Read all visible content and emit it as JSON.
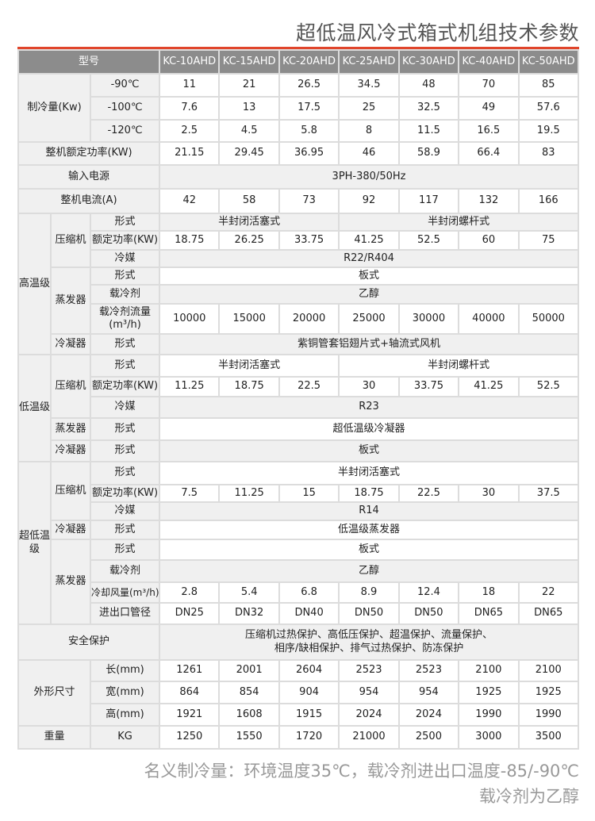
{
  "title": "超低温风冷式箱式机组技术参数",
  "accent_color": "#e0452b",
  "header": {
    "label": "型号",
    "models": [
      "KC-10AHD",
      "KC-15AHD",
      "KC-20AHD",
      "KC-25AHD",
      "KC-30AHD",
      "KC-40AHD",
      "KC-50AHD"
    ]
  },
  "cooling": {
    "label": "制冷量(Kw)",
    "rows": [
      {
        "temp": "-90℃",
        "values": [
          "11",
          "21",
          "26.5",
          "34.5",
          "48",
          "70",
          "85"
        ]
      },
      {
        "temp": "-100℃",
        "values": [
          "7.6",
          "13",
          "17.5",
          "25",
          "32.5",
          "49",
          "57.6"
        ]
      },
      {
        "temp": "-120℃",
        "values": [
          "2.5",
          "4.5",
          "5.8",
          "8",
          "11.5",
          "16.5",
          "19.5"
        ]
      }
    ]
  },
  "rated_power": {
    "label": "整机额定功率(KW)",
    "values": [
      "21.15",
      "29.45",
      "36.95",
      "46",
      "58.9",
      "66.4",
      "83"
    ]
  },
  "power_supply": {
    "label": "输入电源",
    "value": "3PH-380/50Hz"
  },
  "current": {
    "label": "整机电流(A)",
    "values": [
      "42",
      "58",
      "73",
      "92",
      "117",
      "132",
      "166"
    ]
  },
  "high_stage": {
    "label": "高温级",
    "compressor": {
      "label": "压缩机",
      "type_label": "形式",
      "types": [
        "半封闭活塞式",
        "半封闭螺杆式"
      ],
      "power_label": "额定功率(KW)",
      "power_values": [
        "18.75",
        "26.25",
        "33.75",
        "41.25",
        "52.5",
        "60",
        "75"
      ],
      "refrigerant_label": "冷媒",
      "refrigerant": "R22/R404"
    },
    "evaporator": {
      "label": "蒸发器",
      "type_label": "形式",
      "type": "板式",
      "coolant_label": "载冷剂",
      "coolant": "乙醇",
      "flow_label": "载冷剂流量(m³/h)",
      "flow_values": [
        "10000",
        "15000",
        "20000",
        "25000",
        "30000",
        "40000",
        "50000"
      ]
    },
    "condenser": {
      "label": "冷凝器",
      "type_label": "形式",
      "type": "紫铜管套铝翅片式+轴流式风机"
    }
  },
  "low_stage": {
    "label": "低温级",
    "compressor": {
      "label": "压缩机",
      "type_label": "形式",
      "types": [
        "半封闭活塞式",
        "半封闭螺杆式"
      ],
      "power_label": "额定功率(KW)",
      "power_values": [
        "11.25",
        "18.75",
        "22.5",
        "30",
        "33.75",
        "41.25",
        "52.5"
      ],
      "refrigerant_label": "冷媒",
      "refrigerant": "R23"
    },
    "evaporator": {
      "label": "蒸发器",
      "type_label": "形式",
      "type": "超低温级冷凝器"
    },
    "condenser": {
      "label": "冷凝器",
      "type_label": "形式",
      "type": "板式"
    }
  },
  "ultra_stage": {
    "label": "超低温级",
    "compressor": {
      "label": "压缩机",
      "type_label": "形式",
      "type": "半封闭活塞式",
      "power_label": "额定功率(KW)",
      "power_values": [
        "7.5",
        "11.25",
        "15",
        "18.75",
        "22.5",
        "30",
        "37.5"
      ],
      "refrigerant_label": "冷媒",
      "refrigerant": "R14"
    },
    "condenser": {
      "label": "冷凝器",
      "type_label": "形式",
      "type": "低温级蒸发器"
    },
    "evaporator": {
      "label": "蒸发器",
      "type_label": "形式",
      "type": "板式",
      "coolant_label": "载冷剂",
      "coolant": "乙醇",
      "airflow_label": "冷却风量(m³/h)",
      "airflow_values": [
        "2.8",
        "5.4",
        "6.8",
        "8.9",
        "12.4",
        "18",
        "22"
      ],
      "pipe_label": "进出口管径",
      "pipe_values": [
        "DN25",
        "DN32",
        "DN40",
        "DN50",
        "DN50",
        "DN65",
        "DN65"
      ]
    }
  },
  "safety": {
    "label": "安全保护",
    "line1": "压缩机过热保护、高低压保护、超温保护、流量保护、",
    "line2": "相序/缺相保护、排气过热保护、防冻保护"
  },
  "dimensions": {
    "label": "外形尺寸",
    "rows": [
      {
        "label": "长(mm)",
        "values": [
          "1261",
          "2001",
          "2604",
          "2523",
          "2523",
          "2100",
          "2100"
        ]
      },
      {
        "label": "宽(mm)",
        "values": [
          "864",
          "854",
          "904",
          "954",
          "954",
          "1925",
          "1925"
        ]
      },
      {
        "label": "高(mm)",
        "values": [
          "1921",
          "1608",
          "1915",
          "2024",
          "2024",
          "1990",
          "1990"
        ]
      }
    ]
  },
  "weight": {
    "label": "重量",
    "unit": "KG",
    "values": [
      "1250",
      "1550",
      "1720",
      "21000",
      "2500",
      "3000",
      "3500"
    ]
  },
  "notes": {
    "line1": "名义制冷量：环境温度35℃，载冷剂进出口温度-85/-90℃",
    "line2": "载冷剂为乙醇"
  }
}
